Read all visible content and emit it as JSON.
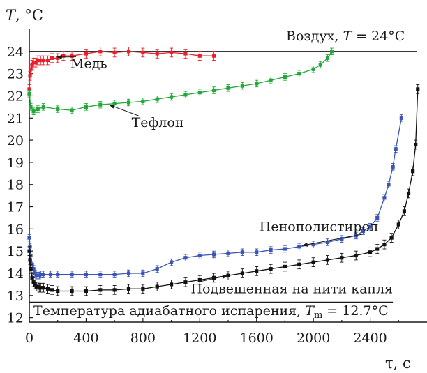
{
  "chart_data": {
    "type": "line",
    "title": "",
    "xlabel": "τ, с",
    "ylabel": "T, °C",
    "xlim": [
      0,
      2800
    ],
    "ylim": [
      11.8,
      25
    ],
    "x_ticks": [
      0,
      400,
      800,
      1200,
      1600,
      2000,
      2400
    ],
    "y_ticks": [
      12,
      13,
      14,
      15,
      16,
      17,
      18,
      19,
      20,
      21,
      22,
      23,
      24
    ],
    "grid": false,
    "error_bars": true,
    "reference_lines": [
      {
        "id": "air",
        "y": 24,
        "x_range": [
          0,
          2730
        ],
        "label": "Воздух, T = 24°C"
      },
      {
        "id": "adiabatic",
        "y": 12.7,
        "x_range": [
          0,
          2560
        ],
        "label": "Температура адиабатного испарения, Tm = 12.7°C"
      }
    ],
    "series": [
      {
        "name": "Медь",
        "color": "#e8202a",
        "error": 0.2,
        "x": [
          0,
          5,
          10,
          20,
          30,
          45,
          60,
          80,
          100,
          130,
          160,
          200,
          240,
          300,
          400,
          500,
          600,
          700,
          800,
          900,
          1000,
          1100,
          1200,
          1300
        ],
        "y": [
          22.3,
          22.9,
          23.2,
          23.4,
          23.5,
          23.5,
          23.6,
          23.6,
          23.6,
          23.6,
          23.7,
          23.7,
          23.8,
          23.8,
          23.9,
          24.0,
          23.95,
          24.0,
          23.95,
          23.9,
          23.95,
          23.9,
          23.8,
          23.8
        ]
      },
      {
        "name": "Тефлон",
        "color": "#22a83a",
        "error": 0.15,
        "x": [
          0,
          10,
          30,
          60,
          100,
          200,
          300,
          400,
          500,
          600,
          700,
          800,
          900,
          1000,
          1100,
          1200,
          1300,
          1400,
          1500,
          1600,
          1700,
          1800,
          1900,
          2000,
          2050,
          2100,
          2130
        ],
        "y": [
          22.1,
          21.5,
          21.3,
          21.4,
          21.5,
          21.4,
          21.35,
          21.5,
          21.6,
          21.65,
          21.7,
          21.75,
          21.85,
          21.95,
          22.05,
          22.15,
          22.25,
          22.35,
          22.45,
          22.55,
          22.7,
          22.85,
          23.0,
          23.2,
          23.4,
          23.7,
          24.0
        ]
      },
      {
        "name": "Пенополистирол",
        "color": "#3a55b5",
        "error": 0.15,
        "x": [
          0,
          5,
          10,
          20,
          30,
          40,
          50,
          60,
          70,
          80,
          100,
          150,
          200,
          300,
          400,
          500,
          600,
          700,
          800,
          900,
          1000,
          1100,
          1200,
          1300,
          1400,
          1500,
          1600,
          1700,
          1800,
          1900,
          2000,
          2100,
          2200,
          2300,
          2350,
          2400,
          2450,
          2500,
          2530,
          2560,
          2580,
          2620
        ],
        "y": [
          15.6,
          15.2,
          14.8,
          14.4,
          14.2,
          14.0,
          13.9,
          13.9,
          13.9,
          13.95,
          13.95,
          13.95,
          13.95,
          13.95,
          13.95,
          13.95,
          13.95,
          14.0,
          14.0,
          14.2,
          14.5,
          14.7,
          14.8,
          14.85,
          14.9,
          14.95,
          14.95,
          15.05,
          15.1,
          15.2,
          15.3,
          15.4,
          15.55,
          15.7,
          15.9,
          16.1,
          16.5,
          17.4,
          18.0,
          18.8,
          19.6,
          21.0
        ]
      },
      {
        "name": "Подвешенная на нити капля",
        "color": "#111111",
        "error": 0.2,
        "x": [
          0,
          5,
          10,
          20,
          30,
          40,
          50,
          60,
          70,
          80,
          100,
          130,
          160,
          200,
          300,
          400,
          500,
          600,
          700,
          800,
          900,
          1000,
          1100,
          1200,
          1300,
          1400,
          1500,
          1600,
          1700,
          1800,
          1900,
          2000,
          2100,
          2200,
          2300,
          2400,
          2450,
          2500,
          2550,
          2600,
          2640,
          2670,
          2700,
          2720,
          2735
        ],
        "y": [
          15.0,
          14.6,
          14.2,
          13.8,
          13.6,
          13.5,
          13.4,
          13.4,
          13.35,
          13.35,
          13.35,
          13.3,
          13.25,
          13.2,
          13.2,
          13.2,
          13.25,
          13.25,
          13.3,
          13.3,
          13.4,
          13.5,
          13.6,
          13.7,
          13.8,
          13.9,
          14.0,
          14.1,
          14.2,
          14.3,
          14.4,
          14.5,
          14.6,
          14.7,
          14.8,
          14.95,
          15.1,
          15.3,
          15.6,
          16.2,
          16.8,
          17.6,
          18.6,
          19.8,
          22.3
        ]
      }
    ],
    "annotations": [
      {
        "text": "Медь",
        "x": 290,
        "y": 23.25,
        "arrow_to": [
          190,
          23.75
        ]
      },
      {
        "text": "Тефлон",
        "x": 720,
        "y": 20.6,
        "arrow_to": [
          560,
          21.6
        ]
      },
      {
        "text": "Пенополистирол",
        "x": 1620,
        "y": 15.9,
        "arrow_to": [
          1920,
          15.25
        ]
      },
      {
        "text": "Подвешенная на нити капля",
        "x": 2560,
        "y": 13.1,
        "arrow_to": [
          1400,
          13.9
        ]
      }
    ]
  }
}
